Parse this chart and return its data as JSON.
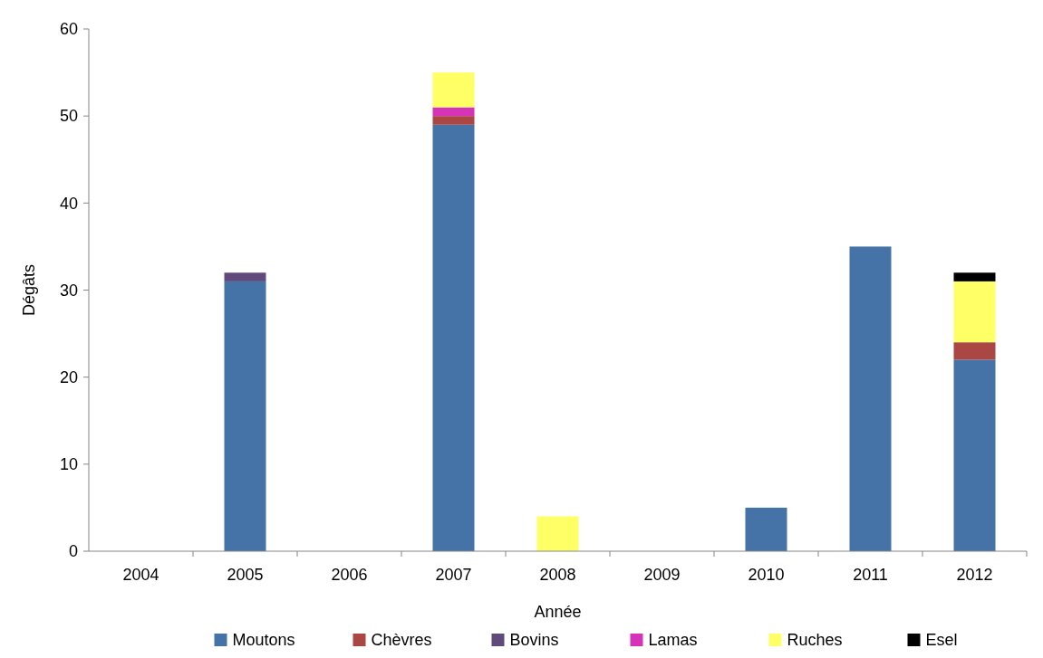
{
  "chart_data": {
    "type": "bar",
    "stacked": true,
    "xlabel": "Année",
    "ylabel": "Dégâts",
    "categories": [
      "2004",
      "2005",
      "2006",
      "2007",
      "2008",
      "2009",
      "2010",
      "2011",
      "2012"
    ],
    "series": [
      {
        "name": "Moutons",
        "color": "#4572a7",
        "values": [
          0,
          31,
          0,
          49,
          0,
          0,
          5,
          35,
          22
        ]
      },
      {
        "name": "Chèvres",
        "color": "#aa4643",
        "values": [
          0,
          0,
          0,
          1,
          0,
          0,
          0,
          0,
          2
        ]
      },
      {
        "name": "Bovins",
        "color": "#604a7b",
        "values": [
          0,
          1,
          0,
          0,
          0,
          0,
          0,
          0,
          0
        ]
      },
      {
        "name": "Lamas",
        "color": "#d633b8",
        "values": [
          0,
          0,
          0,
          1,
          0,
          0,
          0,
          0,
          0
        ]
      },
      {
        "name": "Ruches",
        "color": "#ffff66",
        "values": [
          0,
          0,
          0,
          4,
          4,
          0,
          0,
          0,
          7
        ]
      },
      {
        "name": "Esel",
        "color": "#000000",
        "values": [
          0,
          0,
          0,
          0,
          0,
          0,
          0,
          0,
          1
        ]
      }
    ],
    "ylim": [
      0,
      60
    ],
    "yticks": [
      0,
      10,
      20,
      30,
      40,
      50,
      60
    ],
    "grid": false,
    "legend": "bottom"
  }
}
